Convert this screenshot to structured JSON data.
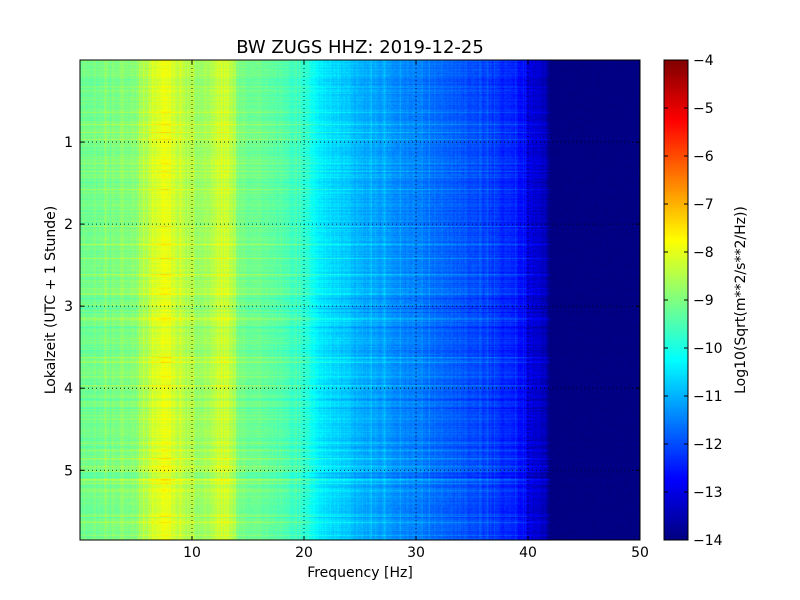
{
  "chart_data": {
    "type": "heatmap",
    "title": "BW ZUGS HHZ: 2019-12-25",
    "xlabel": "Frequency [Hz]",
    "ylabel": "Lokalzeit (UTC + 1 Stunde)",
    "xlim": [
      0,
      50
    ],
    "ylim": [
      5.85,
      0
    ],
    "x_ticks": [
      {
        "value": 10,
        "label": "10"
      },
      {
        "value": 20,
        "label": "20"
      },
      {
        "value": 30,
        "label": "30"
      },
      {
        "value": 40,
        "label": "40"
      },
      {
        "value": 50,
        "label": "50"
      }
    ],
    "y_ticks": [
      {
        "value": 1,
        "label": "1"
      },
      {
        "value": 2,
        "label": "2"
      },
      {
        "value": 3,
        "label": "3"
      },
      {
        "value": 4,
        "label": "4"
      },
      {
        "value": 5,
        "label": "5"
      }
    ],
    "grid": true,
    "grid_style": "dotted",
    "colormap": "jet",
    "colorbar": {
      "label": "Log10(Sqrt(m**2/s**2/Hz))",
      "min": -14,
      "max": -4,
      "ticks": [
        {
          "value": -4,
          "label": "−4"
        },
        {
          "value": -5,
          "label": "−5"
        },
        {
          "value": -6,
          "label": "−6"
        },
        {
          "value": -7,
          "label": "−7"
        },
        {
          "value": -8,
          "label": "−8"
        },
        {
          "value": -9,
          "label": "−9"
        },
        {
          "value": -10,
          "label": "−10"
        },
        {
          "value": -11,
          "label": "−11"
        },
        {
          "value": -12,
          "label": "−12"
        },
        {
          "value": -13,
          "label": "−13"
        },
        {
          "value": -14,
          "label": "−14"
        }
      ]
    },
    "spectrum_profile": {
      "frequency_hz": [
        0,
        5,
        6.5,
        7.5,
        9,
        11,
        12.5,
        13.5,
        14,
        18,
        20.5,
        21,
        25,
        30,
        35,
        39,
        40,
        41.5,
        42,
        50
      ],
      "level": [
        -9.2,
        -8.9,
        -8.3,
        -7.9,
        -8.4,
        -8.8,
        -8.3,
        -8.4,
        -9.0,
        -9.4,
        -9.9,
        -10.3,
        -11.0,
        -11.5,
        -12.0,
        -12.5,
        -13.0,
        -13.4,
        -14.0,
        -14.0
      ]
    }
  }
}
